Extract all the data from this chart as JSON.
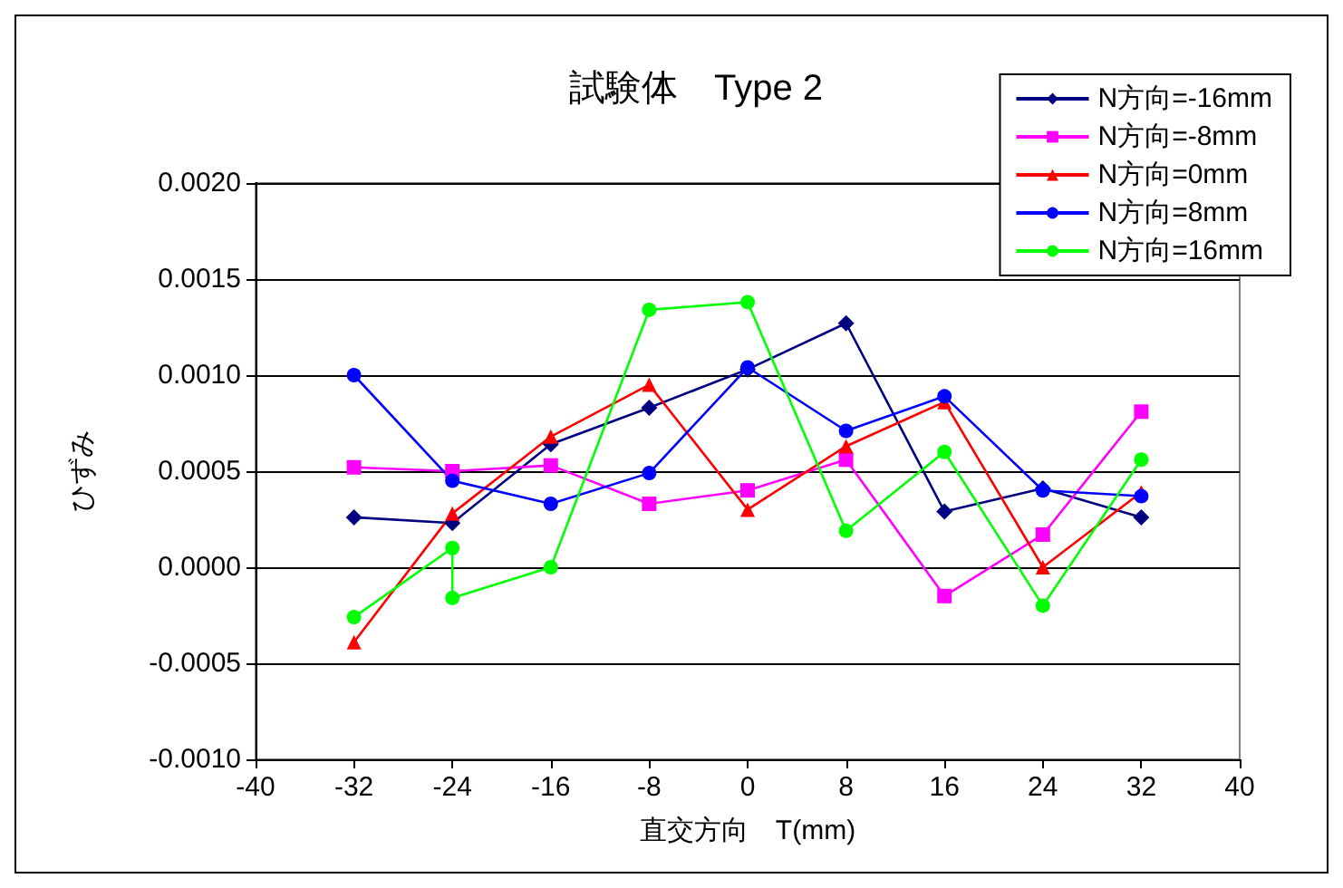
{
  "chart_data": {
    "type": "line",
    "title": "試験体　Type 2",
    "xlabel": "直交方向　T(mm)",
    "ylabel": "ひずみ",
    "x": [
      -32,
      -24,
      -16,
      -8,
      0,
      8,
      16,
      24,
      32
    ],
    "series": [
      {
        "name": "N方向=-16mm",
        "color": "#000080",
        "marker": "diamond",
        "values": [
          0.00026,
          0.00023,
          0.00064,
          0.00083,
          0.00103,
          0.00127,
          0.00029,
          0.00041,
          0.00026
        ]
      },
      {
        "name": "N方向=-8mm",
        "color": "#ff00ff",
        "marker": "square",
        "values": [
          0.00052,
          0.0005,
          0.00053,
          0.00033,
          0.0004,
          0.00056,
          -0.00015,
          0.00017,
          0.00081
        ]
      },
      {
        "name": "N方向=0mm",
        "color": "#ff0000",
        "marker": "triangle",
        "values": [
          -0.00039,
          0.00028,
          0.00068,
          0.00095,
          0.0003,
          0.00063,
          0.00086,
          0,
          0.00039
        ]
      },
      {
        "name": "N方向=8mm",
        "color": "#0000ff",
        "marker": "circle",
        "values": [
          0.001,
          0.00045,
          0.00033,
          0.00049,
          0.00104,
          0.00071,
          0.00089,
          0.0004,
          0.00037
        ]
      },
      {
        "name": "N方向=16mm",
        "color": "#00ff00",
        "marker": "circle",
        "x": [
          -32,
          -24,
          -24,
          -16,
          -8,
          0,
          8,
          16,
          24,
          32
        ],
        "values": [
          -0.00026,
          0.0001,
          -0.00016,
          0,
          0.00134,
          0.00138,
          0.00019,
          0.0006,
          -0.0002,
          0.00056
        ]
      }
    ],
    "xlim": [
      -40,
      40
    ],
    "xticks": [
      -40,
      -32,
      -24,
      -16,
      -8,
      0,
      8,
      16,
      24,
      32,
      40
    ],
    "ylim": [
      -0.001,
      0.002
    ],
    "yticks": [
      {
        "value": -0.001,
        "label": "-0.0010"
      },
      -0.0005,
      {
        "value": 0,
        "label": "0.0000"
      },
      0.0005,
      {
        "value": 0.001,
        "label": "0.0010"
      },
      0.0015,
      {
        "value": 0.002,
        "label": "0.0020"
      }
    ],
    "grid": "y",
    "legend": "top right"
  }
}
